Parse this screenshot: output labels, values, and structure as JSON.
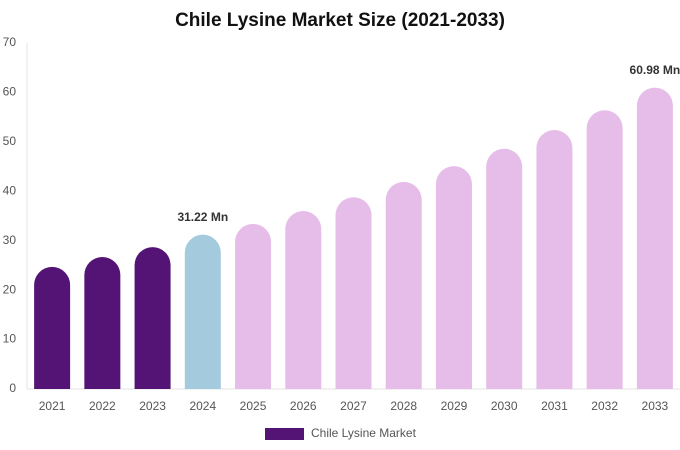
{
  "chart_data": {
    "type": "bar",
    "title": "Chile Lysine Market Size (2021-2033)",
    "categories": [
      "2021",
      "2022",
      "2023",
      "2024",
      "2025",
      "2026",
      "2027",
      "2028",
      "2029",
      "2030",
      "2031",
      "2032",
      "2033"
    ],
    "series": [
      {
        "name": "Chile Lysine Market",
        "color": "#541475",
        "colors": [
          "#541475",
          "#541475",
          "#541475",
          "#a4cade",
          "#e6bde9",
          "#e6bde9",
          "#e6bde9",
          "#e6bde9",
          "#e6bde9",
          "#e6bde9",
          "#e6bde9",
          "#e6bde9",
          "#e6bde9"
        ],
        "values": [
          24.7,
          26.7,
          28.7,
          31.22,
          33.4,
          36.0,
          38.8,
          41.9,
          45.1,
          48.6,
          52.4,
          56.4,
          60.98
        ],
        "value_labels": [
          null,
          null,
          null,
          "31.22 Mn",
          null,
          null,
          null,
          null,
          null,
          null,
          null,
          null,
          "60.98 Mn"
        ]
      }
    ],
    "ylim": [
      0,
      70
    ],
    "yticks": [
      0,
      10,
      20,
      30,
      40,
      50,
      60,
      70
    ],
    "grid": false,
    "legend": "bottom"
  }
}
